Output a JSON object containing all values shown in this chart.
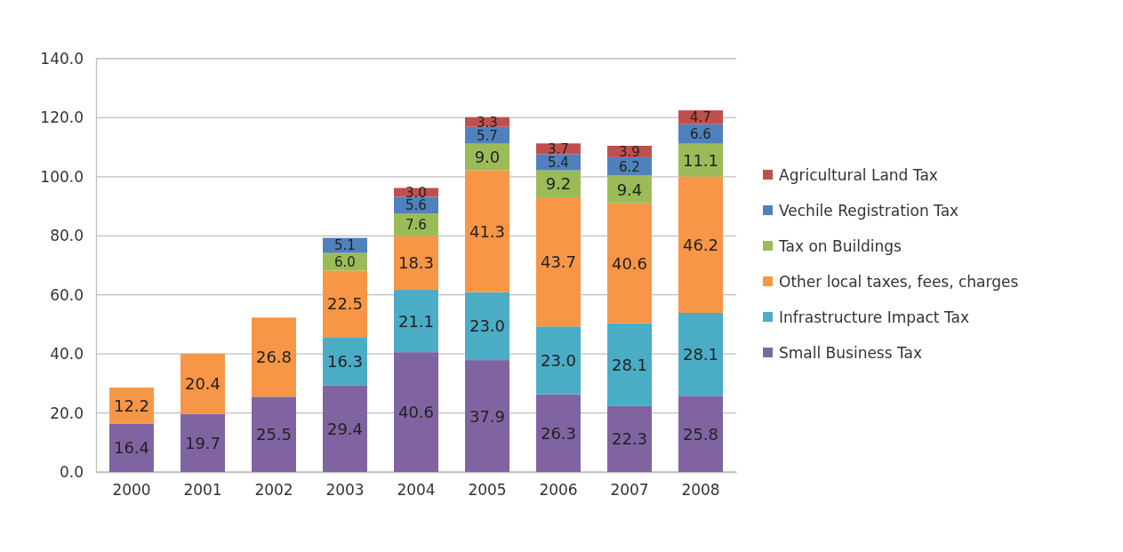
{
  "chart_data": {
    "type": "bar",
    "stacked": true,
    "categories": [
      "2000",
      "2001",
      "2002",
      "2003",
      "2004",
      "2005",
      "2006",
      "2007",
      "2008"
    ],
    "series": [
      {
        "name": "Small Business Tax",
        "color": "#8064a2",
        "values": [
          16.4,
          19.7,
          25.5,
          29.4,
          40.6,
          37.9,
          26.3,
          22.3,
          25.8
        ],
        "value_labels": [
          "16.4",
          "19.7",
          "25.5",
          "29.4",
          "40.6",
          "37.9",
          "26.3",
          "22.3",
          "25.8"
        ]
      },
      {
        "name": "Infrastructure Impact Tax",
        "color": "#4bacc6",
        "values": [
          null,
          null,
          null,
          16.3,
          21.1,
          23.0,
          23.0,
          28.1,
          28.1
        ],
        "value_labels": [
          null,
          null,
          null,
          "16.3",
          "21.1",
          "23.0",
          "23.0",
          "28.1",
          "28.1"
        ]
      },
      {
        "name": "Other local taxes, fees, charges",
        "color": "#f79646",
        "values": [
          12.2,
          20.4,
          26.8,
          22.5,
          18.3,
          41.3,
          43.7,
          40.6,
          46.2
        ],
        "value_labels": [
          "12.2",
          "20.4",
          "26.8",
          "22.5",
          "18.3",
          "41.3",
          "43.7",
          "40.6",
          "46.2"
        ]
      },
      {
        "name": "Tax on Buildings",
        "color": "#9bbb59",
        "values": [
          null,
          null,
          null,
          6.0,
          7.6,
          9.0,
          9.2,
          9.4,
          11.1
        ],
        "value_labels": [
          null,
          null,
          null,
          "6.0",
          "7.6",
          "9.0",
          "9.2",
          "9.4",
          "11.1"
        ]
      },
      {
        "name": "Vechile Registration Tax",
        "color": "#4f81bd",
        "values": [
          null,
          null,
          null,
          5.1,
          5.6,
          5.7,
          5.4,
          6.2,
          6.6
        ],
        "value_labels": [
          null,
          null,
          null,
          "5.1",
          "5.6",
          "5.7",
          "5.4",
          "6.2",
          "6.6"
        ]
      },
      {
        "name": "Agricultural Land Tax",
        "color": "#c0504d",
        "values": [
          null,
          null,
          null,
          null,
          3.0,
          3.3,
          3.7,
          3.9,
          4.7
        ],
        "value_labels": [
          null,
          null,
          null,
          null,
          "3.0",
          "3.3",
          "3.7",
          "3.9",
          "4.7"
        ]
      }
    ],
    "ylim": [
      0,
      140
    ],
    "yticks": [
      {
        "value": 0,
        "label": "0.0"
      },
      {
        "value": 20,
        "label": "20.0"
      },
      {
        "value": 40,
        "label": "40.0"
      },
      {
        "value": 60,
        "label": "60.0"
      },
      {
        "value": 80,
        "label": "80.0"
      },
      {
        "value": 100,
        "label": "100.0"
      },
      {
        "value": 120,
        "label": "120.0"
      },
      {
        "value": 140,
        "label": "140.0"
      }
    ],
    "grid": "y",
    "legend": "right"
  }
}
